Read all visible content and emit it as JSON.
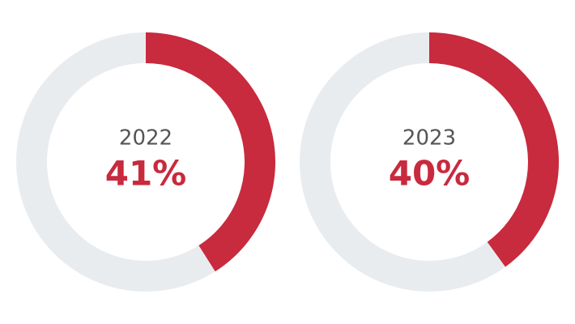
{
  "chart_data": [
    {
      "type": "donut",
      "title": "2022",
      "values": [
        41
      ],
      "value_labels": [
        "41%"
      ],
      "color": "#c82a3e",
      "track_color": "#e9ecef",
      "max": 100
    },
    {
      "type": "donut",
      "title": "2023",
      "values": [
        40
      ],
      "value_labels": [
        "40%"
      ],
      "color": "#c82a3e",
      "track_color": "#e9ecef",
      "max": 100
    }
  ]
}
